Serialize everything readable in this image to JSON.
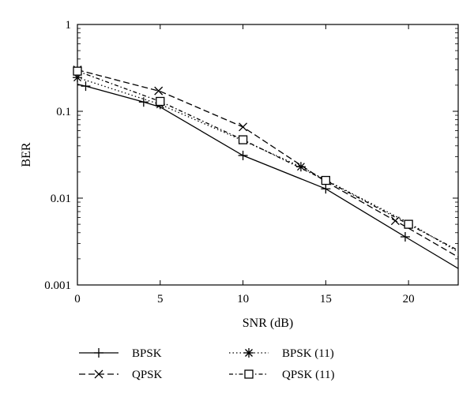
{
  "chart_data": {
    "type": "line",
    "xlabel": "SNR (dB)",
    "ylabel": "BER",
    "xlim": [
      0,
      23
    ],
    "ylim": [
      0.001,
      1
    ],
    "yscale": "log",
    "xticks": [
      0,
      5,
      10,
      15,
      20
    ],
    "xtick_labels": [
      "0",
      "5",
      "10",
      "15",
      "20"
    ],
    "yticks": [
      0.001,
      0.01,
      0.1,
      1
    ],
    "ytick_labels": [
      "0.001",
      "0.01",
      "0.1",
      "1"
    ],
    "grid": false,
    "legend_position": "bottom",
    "series": [
      {
        "name": "BPSK",
        "line_style": "solid",
        "marker": "plus",
        "x": [
          0,
          0.5,
          4,
          5,
          10,
          15,
          20,
          23
        ],
        "y": [
          0.205,
          0.195,
          0.128,
          0.112,
          0.031,
          0.0128,
          0.0034,
          0.00155
        ],
        "marker_x": [
          0.5,
          4,
          10,
          15,
          19.8
        ]
      },
      {
        "name": "QPSK",
        "line_style": "dashed",
        "marker": "x",
        "x": [
          0,
          5,
          10,
          15,
          20,
          23
        ],
        "y": [
          0.3,
          0.17,
          0.066,
          0.0155,
          0.0045,
          0.0021
        ],
        "marker_x": [
          0,
          4.9,
          10,
          19.2
        ]
      },
      {
        "name": "BPSK (11)",
        "line_style": "dotted",
        "marker": "asterisk",
        "x": [
          0,
          5,
          10,
          13.5,
          15,
          20,
          23
        ],
        "y": [
          0.245,
          0.12,
          0.046,
          0.023,
          0.0162,
          0.0052,
          0.0024
        ],
        "marker_x": [
          0,
          5,
          13.5
        ]
      },
      {
        "name": "QPSK (11)",
        "line_style": "dash-dot",
        "marker": "square",
        "x": [
          0,
          5,
          10,
          15,
          20,
          23
        ],
        "y": [
          0.29,
          0.13,
          0.047,
          0.016,
          0.005,
          0.0025
        ],
        "marker_x": [
          0,
          5,
          10,
          15,
          20
        ]
      }
    ]
  },
  "colors": {
    "axis": "#000000",
    "series": "#000000",
    "background": "#ffffff"
  }
}
